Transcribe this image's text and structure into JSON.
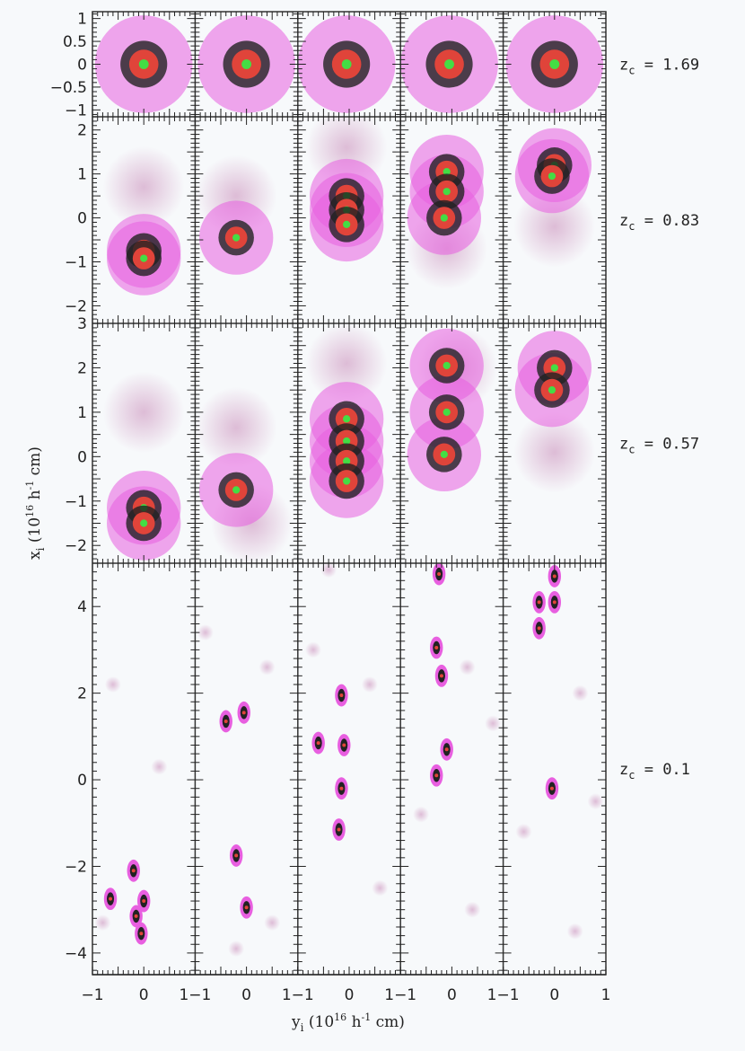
{
  "chart_data": {
    "type": "scatter",
    "xlabel": {
      "var": "y",
      "sub": "i",
      "rest": " (10",
      "exp": "16",
      "unit": " h",
      "uexp": "-1",
      "tail": " cm)"
    },
    "ylabel": {
      "var": "x",
      "sub": "i",
      "rest": " (10",
      "exp": "16",
      "unit": " h",
      "uexp": "-1",
      "tail": " cm)"
    },
    "columns": 5,
    "x_range": [
      -1,
      1
    ],
    "x_ticks": [
      -1,
      0,
      1
    ],
    "x_tick_labels": [
      "−1",
      "0",
      "1"
    ],
    "colors": {
      "halo": "#e85fe0",
      "core": "#222222",
      "ring": "#e0443a",
      "center": "#44dd44",
      "faint": "#c88ab8"
    },
    "rows": [
      {
        "label": "zₑ = 1.69",
        "label_var": "z",
        "label_sub": "c",
        "label_val": " = 1.69",
        "ylim": [
          -1.15,
          1.15
        ],
        "y_ticks": [
          1,
          0.5,
          0,
          -0.5,
          -1
        ],
        "y_tick_labels": [
          "1",
          "0.5",
          "0",
          "−0.5",
          "−1"
        ],
        "radius": 0.95,
        "panels": [
          {
            "sources": [
              {
                "x": 0,
                "y": 0
              }
            ],
            "faint": []
          },
          {
            "sources": [
              {
                "x": 0,
                "y": 0
              }
            ],
            "faint": []
          },
          {
            "sources": [
              {
                "x": -0.05,
                "y": 0
              }
            ],
            "faint": []
          },
          {
            "sources": [
              {
                "x": -0.05,
                "y": 0
              }
            ],
            "faint": []
          },
          {
            "sources": [
              {
                "x": 0,
                "y": 0
              }
            ],
            "faint": []
          }
        ]
      },
      {
        "label": "z = 0.83",
        "label_var": "z",
        "label_sub": "c",
        "label_val": " = 0.83",
        "ylim": [
          -2.4,
          2.3
        ],
        "y_ticks": [
          2,
          1,
          0,
          -1,
          -2
        ],
        "y_tick_labels": [
          "2",
          "1",
          "0",
          "−1",
          "−2"
        ],
        "radius": 0.72,
        "panels": [
          {
            "sources": [
              {
                "x": 0,
                "y": -0.75
              },
              {
                "x": 0,
                "y": -0.92
              }
            ],
            "faint": [
              {
                "x": 0,
                "y": 0.7
              }
            ]
          },
          {
            "sources": [
              {
                "x": -0.2,
                "y": -0.45
              }
            ],
            "faint": [
              {
                "x": -0.2,
                "y": 0.5
              }
            ]
          },
          {
            "sources": [
              {
                "x": -0.05,
                "y": 0.5
              },
              {
                "x": -0.05,
                "y": 0.18
              },
              {
                "x": -0.05,
                "y": -0.15
              }
            ],
            "faint": [
              {
                "x": -0.05,
                "y": 1.6
              }
            ]
          },
          {
            "sources": [
              {
                "x": -0.1,
                "y": 1.05
              },
              {
                "x": -0.1,
                "y": 0.6
              },
              {
                "x": -0.15,
                "y": 0
              }
            ],
            "faint": [
              {
                "x": -0.1,
                "y": -0.7
              }
            ]
          },
          {
            "sources": [
              {
                "x": 0,
                "y": 1.2
              },
              {
                "x": -0.05,
                "y": 0.95
              }
            ],
            "faint": [
              {
                "x": 0,
                "y": -0.2
              }
            ]
          }
        ]
      },
      {
        "label": "z = 0.57",
        "label_var": "z",
        "label_sub": "c",
        "label_val": " = 0.57",
        "ylim": [
          -2.4,
          3
        ],
        "y_ticks": [
          3,
          2,
          1,
          0,
          -1,
          -2
        ],
        "y_tick_labels": [
          "3",
          "2",
          "1",
          "0",
          "−1",
          "−2"
        ],
        "radius": 0.72,
        "panels": [
          {
            "sources": [
              {
                "x": 0,
                "y": -1.15
              },
              {
                "x": 0,
                "y": -1.5
              }
            ],
            "faint": [
              {
                "x": 0,
                "y": 1.0
              }
            ]
          },
          {
            "sources": [
              {
                "x": -0.2,
                "y": -0.75
              }
            ],
            "faint": [
              {
                "x": -0.2,
                "y": 0.65
              },
              {
                "x": 0.1,
                "y": -1.5
              }
            ]
          },
          {
            "sources": [
              {
                "x": -0.05,
                "y": 0.85
              },
              {
                "x": -0.05,
                "y": 0.35
              },
              {
                "x": -0.05,
                "y": -0.1
              },
              {
                "x": -0.05,
                "y": -0.55
              }
            ],
            "faint": [
              {
                "x": -0.05,
                "y": 2.1
              }
            ]
          },
          {
            "sources": [
              {
                "x": -0.1,
                "y": 2.05
              },
              {
                "x": -0.1,
                "y": 1.0
              },
              {
                "x": -0.15,
                "y": 0.05
              }
            ],
            "faint": [
              {
                "x": 0.1,
                "y": 2.0
              }
            ]
          },
          {
            "sources": [
              {
                "x": 0,
                "y": 2.0
              },
              {
                "x": -0.05,
                "y": 1.5
              }
            ],
            "faint": [
              {
                "x": 0,
                "y": 0.1
              }
            ]
          }
        ]
      },
      {
        "label": "z = 0.1",
        "label_var": "z",
        "label_sub": "c",
        "label_val": " = 0.1",
        "ylim": [
          -4.5,
          5
        ],
        "y_ticks": [
          4,
          2,
          0,
          -2,
          -4
        ],
        "y_tick_labels": [
          "4",
          "2",
          "0",
          "−2",
          "−4"
        ],
        "radius": 0.14,
        "panels": [
          {
            "sources": [
              {
                "x": 0,
                "y": -2.8
              },
              {
                "x": -0.05,
                "y": -3.55
              },
              {
                "x": -0.65,
                "y": -2.75
              },
              {
                "x": -0.2,
                "y": -2.1
              },
              {
                "x": -0.15,
                "y": -3.15
              }
            ],
            "faint": [
              {
                "x": -0.8,
                "y": -3.3
              },
              {
                "x": 0.3,
                "y": 0.3
              },
              {
                "x": -0.6,
                "y": 2.2
              }
            ]
          },
          {
            "sources": [
              {
                "x": -0.2,
                "y": -1.75
              },
              {
                "x": 0,
                "y": -2.95
              },
              {
                "x": -0.4,
                "y": 1.35
              },
              {
                "x": -0.05,
                "y": 1.55
              }
            ],
            "faint": [
              {
                "x": 0.4,
                "y": 2.6
              },
              {
                "x": -0.8,
                "y": 3.4
              },
              {
                "x": 0.5,
                "y": -3.3
              },
              {
                "x": -0.2,
                "y": -3.9
              }
            ]
          },
          {
            "sources": [
              {
                "x": -0.15,
                "y": 1.95
              },
              {
                "x": -0.1,
                "y": 0.8
              },
              {
                "x": -0.15,
                "y": -0.2
              },
              {
                "x": -0.2,
                "y": -1.15
              },
              {
                "x": -0.6,
                "y": 0.85
              }
            ],
            "faint": [
              {
                "x": -0.7,
                "y": 3.0
              },
              {
                "x": 0.4,
                "y": 2.2
              },
              {
                "x": 0.6,
                "y": -2.5
              },
              {
                "x": -0.4,
                "y": 4.85
              }
            ]
          },
          {
            "sources": [
              {
                "x": -0.3,
                "y": 3.05
              },
              {
                "x": -0.2,
                "y": 2.4
              },
              {
                "x": -0.3,
                "y": 0.1
              },
              {
                "x": -0.1,
                "y": 0.7
              },
              {
                "x": -0.25,
                "y": 4.75
              }
            ],
            "faint": [
              {
                "x": 0.3,
                "y": 2.6
              },
              {
                "x": -0.6,
                "y": -0.8
              },
              {
                "x": 0.8,
                "y": 1.3
              },
              {
                "x": 0.4,
                "y": -3.0
              }
            ]
          },
          {
            "sources": [
              {
                "x": 0,
                "y": 4.7
              },
              {
                "x": -0.3,
                "y": 3.5
              },
              {
                "x": -0.3,
                "y": 4.1
              },
              {
                "x": -0.05,
                "y": -0.2
              },
              {
                "x": 0,
                "y": 4.1
              }
            ],
            "faint": [
              {
                "x": 0.5,
                "y": 2.0
              },
              {
                "x": -0.6,
                "y": -1.2
              },
              {
                "x": 0.8,
                "y": -0.5
              },
              {
                "x": 0.4,
                "y": -3.5
              }
            ]
          }
        ]
      }
    ]
  }
}
